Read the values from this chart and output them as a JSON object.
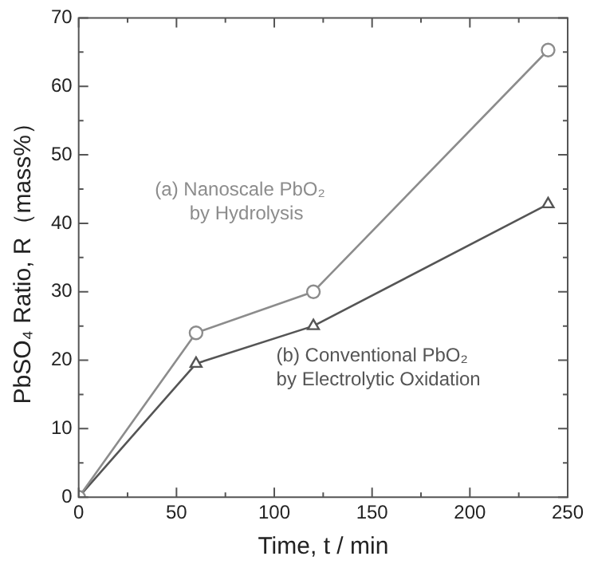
{
  "chart_data": {
    "type": "line",
    "xlabel": "Time, t / min",
    "ylabel": "PbSO₄ Ratio, R（mass%）",
    "x": [
      0,
      60,
      120,
      240
    ],
    "series": [
      {
        "name": "(a) Nanoscale PbO₂\nby Hydrolysis",
        "color": "#8c8c8c",
        "marker": "circle",
        "values": [
          0,
          24,
          30,
          65.3
        ]
      },
      {
        "name": "(b) Conventional PbO₂\nby Electrolytic Oxidation",
        "color": "#555555",
        "marker": "triangle",
        "values": [
          0,
          19.5,
          25,
          42.8
        ]
      }
    ],
    "xlim": [
      0,
      250
    ],
    "xticks": [
      0,
      {
        "value": 25,
        "label": null
      },
      50,
      {
        "value": 75,
        "label": null
      },
      100,
      {
        "value": 125,
        "label": null
      },
      150,
      {
        "value": 175,
        "label": null
      },
      200,
      {
        "value": 225,
        "label": null
      },
      250
    ],
    "ylim": [
      0,
      70
    ],
    "yticks": [
      0,
      {
        "value": 5,
        "label": null
      },
      10,
      {
        "value": 15,
        "label": null
      },
      20,
      {
        "value": 25,
        "label": null
      },
      30,
      {
        "value": 35,
        "label": null
      },
      40,
      {
        "value": 45,
        "label": null
      },
      50,
      {
        "value": 55,
        "label": null
      },
      60,
      {
        "value": 65,
        "label": null
      },
      70
    ],
    "grid": false,
    "legend": false,
    "line_style": "solid"
  }
}
